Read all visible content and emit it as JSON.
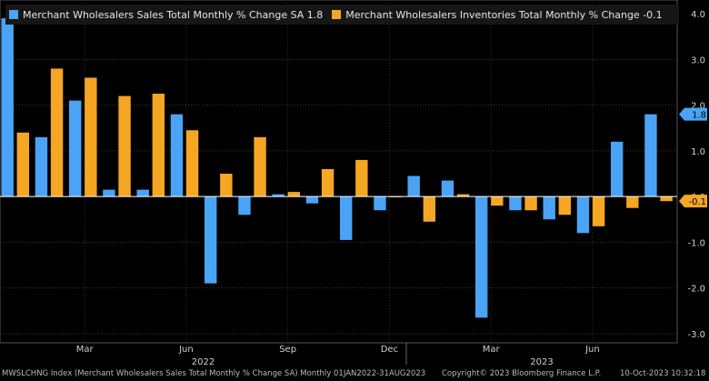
{
  "legend": [
    {
      "label": "Merchant Wholesalers Sales Total Monthly % Change SA 1.8",
      "color": "#4aa3f5"
    },
    {
      "label": "Merchant Wholesalers Inventories Total Monthly % Change -0.1",
      "color": "#f5a623"
    }
  ],
  "footer": {
    "left": "MWSLCHNG Index (Merchant Wholesalers Sales Total Monthly % Change SA)  Monthly 01JAN2022-31AUG2023",
    "middle": "Copyright© 2023 Bloomberg Finance L.P.",
    "right": "10-Oct-2023 10:32:18"
  },
  "chart_data": {
    "type": "bar",
    "categories": [
      "Jan 2022",
      "Feb 2022",
      "Mar 2022",
      "Apr 2022",
      "May 2022",
      "Jun 2022",
      "Jul 2022",
      "Aug 2022",
      "Sep 2022",
      "Oct 2022",
      "Nov 2022",
      "Dec 2022",
      "Jan 2023",
      "Feb 2023",
      "Mar 2023",
      "Apr 2023",
      "May 2023",
      "Jun 2023",
      "Jul 2023",
      "Aug 2023"
    ],
    "series": [
      {
        "name": "Merchant Wholesalers Sales Total Monthly % Change SA 1.8",
        "color": "#4aa3f5",
        "values": [
          3.9,
          1.3,
          2.1,
          0.15,
          0.15,
          1.8,
          -1.9,
          -0.4,
          0.05,
          -0.15,
          -0.95,
          -0.3,
          0.45,
          0.35,
          -2.65,
          -0.3,
          -0.5,
          -0.8,
          1.2,
          1.8
        ]
      },
      {
        "name": "Merchant Wholesalers Inventories Total Monthly % Change -0.1",
        "color": "#f5a623",
        "values": [
          1.4,
          2.8,
          2.6,
          2.2,
          2.25,
          1.45,
          0.5,
          1.3,
          0.1,
          0.6,
          0.8,
          0.0,
          -0.55,
          0.05,
          -0.2,
          -0.3,
          -0.4,
          -0.65,
          -0.25,
          -0.1
        ]
      }
    ],
    "ylim": [
      -3.2,
      4.3
    ],
    "yticks": [
      "4.0",
      "3.0",
      "2.0",
      "1.0",
      "0.0",
      "-1.0",
      "-2.0",
      "-3.0"
    ],
    "x_month_labels": [
      "Mar",
      "Jun",
      "Sep",
      "Dec",
      "Mar",
      "Jun"
    ],
    "x_year_labels": [
      "2022",
      "2023"
    ],
    "last_value_tags": [
      "1.8",
      "-0.1"
    ],
    "grid": true
  }
}
